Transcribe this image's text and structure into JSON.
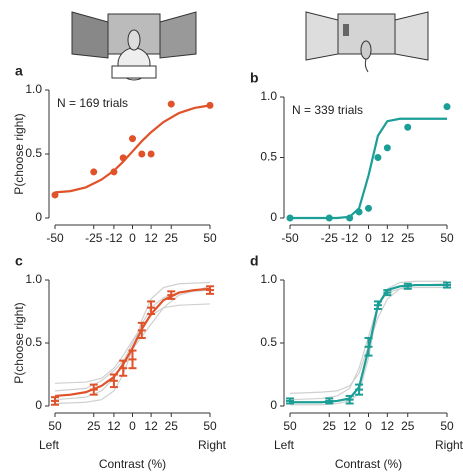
{
  "chart_data": [
    {
      "type": "scatter",
      "panel": "a",
      "ylabel": "P(choose right)",
      "annotation": "N = 169 trials",
      "color": "#e0522a",
      "x": [
        -50,
        -25,
        -12,
        -6,
        0,
        6,
        12,
        25,
        50
      ],
      "values": [
        0.18,
        0.36,
        0.36,
        0.47,
        0.62,
        0.5,
        0.5,
        0.89,
        0.88
      ],
      "fit": {
        "x": [
          -50,
          -40,
          -30,
          -20,
          -12,
          -6,
          0,
          6,
          12,
          20,
          30,
          40,
          50
        ],
        "values": [
          0.2,
          0.21,
          0.24,
          0.3,
          0.37,
          0.44,
          0.52,
          0.6,
          0.67,
          0.75,
          0.82,
          0.86,
          0.88
        ]
      },
      "xlim": [
        -50,
        50
      ],
      "xticks": [
        -50,
        -25,
        -12,
        0,
        12,
        25,
        50
      ],
      "ylim": [
        0,
        1
      ],
      "yticks": [
        0,
        0.5,
        {
          "value": 1,
          "label": "1.0"
        }
      ]
    },
    {
      "type": "scatter",
      "panel": "b",
      "annotation": "N = 339 trials",
      "color": "#1a9e96",
      "x": [
        -50,
        -25,
        -12,
        -6,
        0,
        6,
        12,
        25,
        50
      ],
      "values": [
        0,
        0,
        0,
        0.05,
        0.08,
        0.5,
        0.58,
        0.75,
        0.92
      ],
      "fit": {
        "x": [
          -50,
          -40,
          -30,
          -20,
          -12,
          -6,
          0,
          6,
          12,
          20,
          30,
          40,
          50
        ],
        "values": [
          0,
          0,
          0,
          0,
          0.01,
          0.08,
          0.35,
          0.68,
          0.8,
          0.82,
          0.82,
          0.82,
          0.82
        ]
      },
      "xlim": [
        -50,
        50
      ],
      "xticks": [
        -50,
        -25,
        -12,
        0,
        12,
        25,
        50
      ],
      "ylim": [
        0,
        1
      ],
      "yticks": [
        0,
        0.5,
        {
          "value": 1,
          "label": "1.0"
        }
      ]
    },
    {
      "type": "errorbar",
      "panel": "c",
      "ylabel": "P(choose right)",
      "xlabel": "Contrast (%)",
      "left_label": "Left",
      "right_label": "Right",
      "color": "#e0522a",
      "gray": "#d0d0d0",
      "x": [
        -50,
        -25,
        -12,
        -6,
        0,
        6,
        12,
        25,
        50
      ],
      "values": [
        0.04,
        0.13,
        0.2,
        0.3,
        0.37,
        0.6,
        0.78,
        0.88,
        0.92
      ],
      "errors": [
        0.03,
        0.04,
        0.05,
        0.06,
        0.07,
        0.06,
        0.05,
        0.03,
        0.03
      ],
      "fit": {
        "x": [
          -50,
          -40,
          -30,
          -20,
          -12,
          -6,
          0,
          6,
          12,
          20,
          30,
          40,
          50
        ],
        "values": [
          0.08,
          0.09,
          0.11,
          0.16,
          0.23,
          0.33,
          0.46,
          0.61,
          0.73,
          0.84,
          0.9,
          0.92,
          0.93
        ]
      },
      "gray_curves": [
        {
          "x": [
            -50,
            -30,
            -20,
            -12,
            -6,
            0,
            6,
            12,
            20,
            30,
            50
          ],
          "values": [
            0.18,
            0.19,
            0.22,
            0.3,
            0.4,
            0.52,
            0.63,
            0.72,
            0.78,
            0.8,
            0.81
          ]
        },
        {
          "x": [
            -50,
            -30,
            -20,
            -12,
            -6,
            0,
            6,
            12,
            20,
            30,
            50
          ],
          "values": [
            0.02,
            0.03,
            0.05,
            0.12,
            0.25,
            0.45,
            0.68,
            0.85,
            0.94,
            0.97,
            0.98
          ]
        },
        {
          "x": [
            -50,
            -30,
            -20,
            -12,
            -6,
            0,
            6,
            12,
            20,
            30,
            50
          ],
          "values": [
            0.12,
            0.14,
            0.2,
            0.28,
            0.36,
            0.45,
            0.55,
            0.65,
            0.78,
            0.88,
            0.95
          ]
        },
        {
          "x": [
            -50,
            -30,
            -20,
            -12,
            -6,
            0,
            6,
            12,
            20,
            30,
            50
          ],
          "values": [
            0.05,
            0.07,
            0.12,
            0.22,
            0.35,
            0.5,
            0.65,
            0.78,
            0.86,
            0.9,
            0.92
          ]
        }
      ],
      "xlim": [
        -50,
        50
      ],
      "xticks": [
        {
          "value": -50,
          "label": "50"
        },
        {
          "value": -25,
          "label": "25"
        },
        {
          "value": -12,
          "label": "12"
        },
        0,
        12,
        25,
        50
      ],
      "ylim": [
        0,
        1
      ],
      "yticks": [
        0,
        0.5,
        {
          "value": 1,
          "label": "1.0"
        }
      ]
    },
    {
      "type": "errorbar",
      "panel": "d",
      "xlabel": "Contrast (%)",
      "left_label": "Left",
      "right_label": "Right",
      "color": "#1a9e96",
      "gray": "#d0d0d0",
      "x": [
        -50,
        -25,
        -12,
        -6,
        0,
        6,
        12,
        25,
        50
      ],
      "values": [
        0.04,
        0.04,
        0.05,
        0.13,
        0.47,
        0.8,
        0.9,
        0.95,
        0.96
      ],
      "errors": [
        0.02,
        0.02,
        0.03,
        0.04,
        0.07,
        0.03,
        0.02,
        0.02,
        0.02
      ],
      "fit": {
        "x": [
          -50,
          -40,
          -30,
          -20,
          -12,
          -6,
          0,
          6,
          12,
          20,
          30,
          40,
          50
        ],
        "values": [
          0.03,
          0.03,
          0.03,
          0.04,
          0.06,
          0.15,
          0.45,
          0.8,
          0.92,
          0.95,
          0.96,
          0.96,
          0.96
        ]
      },
      "gray_curves": [
        {
          "x": [
            -50,
            -30,
            -20,
            -12,
            -6,
            0,
            6,
            12,
            20,
            30,
            50
          ],
          "values": [
            0.1,
            0.11,
            0.12,
            0.16,
            0.26,
            0.48,
            0.7,
            0.85,
            0.93,
            0.96,
            0.97
          ]
        },
        {
          "x": [
            -50,
            -30,
            -20,
            -12,
            -6,
            0,
            6,
            12,
            20,
            30,
            50
          ],
          "values": [
            0.01,
            0.01,
            0.02,
            0.04,
            0.1,
            0.38,
            0.78,
            0.93,
            0.98,
            0.99,
            0.99
          ]
        },
        {
          "x": [
            -50,
            -30,
            -20,
            -12,
            -6,
            0,
            6,
            12,
            20,
            30,
            50
          ],
          "values": [
            0.05,
            0.06,
            0.08,
            0.14,
            0.3,
            0.55,
            0.8,
            0.9,
            0.93,
            0.94,
            0.94
          ]
        }
      ],
      "xlim": [
        -50,
        50
      ],
      "xticks": [
        {
          "value": -50,
          "label": "50"
        },
        {
          "value": -25,
          "label": "25"
        },
        {
          "value": -12,
          "label": "12"
        },
        0,
        12,
        25,
        50
      ],
      "ylim": [
        0,
        1
      ],
      "yticks": [
        0,
        0.5,
        {
          "value": 1,
          "label": "1.0"
        }
      ]
    }
  ]
}
